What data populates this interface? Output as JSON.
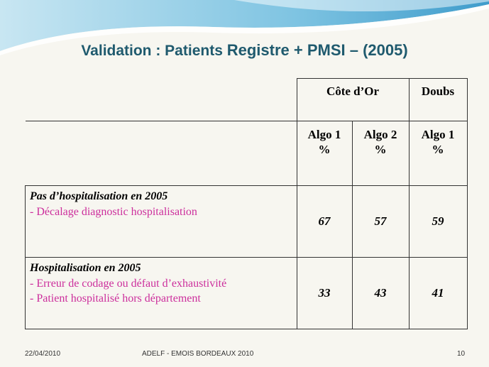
{
  "title": {
    "part1": "Validation : Patients ",
    "part2": "Registre + PMSI – (2005)"
  },
  "table": {
    "region_headers": [
      "Côte d’Or",
      "Doubs"
    ],
    "sub_headers": [
      {
        "line1": "Algo 1",
        "line2": "%"
      },
      {
        "line1": "Algo 2",
        "line2": "%"
      },
      {
        "line1": "Algo 1",
        "line2": "%"
      }
    ],
    "rows": [
      {
        "title": "Pas d’hospitalisation en 2005",
        "items": [
          "- Décalage  diagnostic hospitalisation"
        ],
        "values": [
          "67",
          "57",
          "59"
        ]
      },
      {
        "title": "Hospitalisation en 2005",
        "items": [
          "- Erreur de codage ou défaut d’exhaustivité",
          "- Patient hospitalisé hors département"
        ],
        "values": [
          "33",
          "43",
          "41"
        ]
      }
    ]
  },
  "footer": {
    "date": "22/04/2010",
    "event": "ADELF - EMOIS BORDEAUX 2010",
    "page": "10"
  }
}
